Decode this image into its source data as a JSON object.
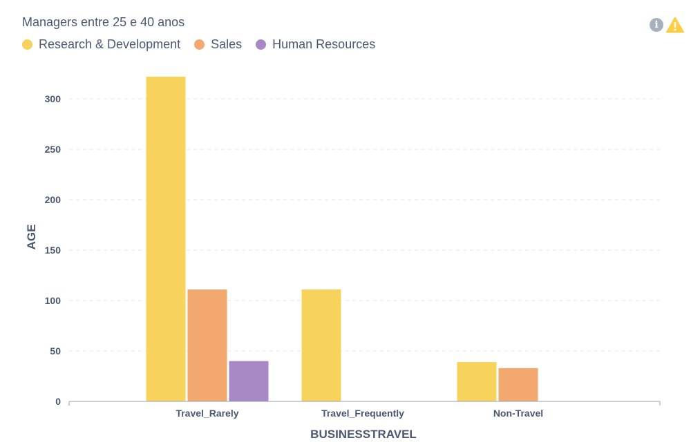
{
  "chart_data": {
    "type": "bar",
    "title": "Managers entre 25 e 40 anos",
    "xlabel": "BUSINESSTRAVEL",
    "ylabel": "AGE",
    "categories": [
      "Travel_Rarely",
      "Travel_Frequently",
      "Non-Travel"
    ],
    "series": [
      {
        "name": "Research & Development",
        "color": "#f7d35e",
        "values": [
          322,
          111,
          39
        ]
      },
      {
        "name": "Sales",
        "color": "#f2a86f",
        "values": [
          111,
          0,
          33
        ]
      },
      {
        "name": "Human Resources",
        "color": "#a989c5",
        "values": [
          40,
          0,
          0
        ]
      }
    ],
    "ylim": [
      0,
      335
    ],
    "yticks": [
      0,
      50,
      100,
      150,
      200,
      250,
      300
    ],
    "grid": true,
    "legend_position": "top-left"
  },
  "icons": {
    "info": "info-icon",
    "info_glyph": "i",
    "warning": "warning-icon"
  }
}
